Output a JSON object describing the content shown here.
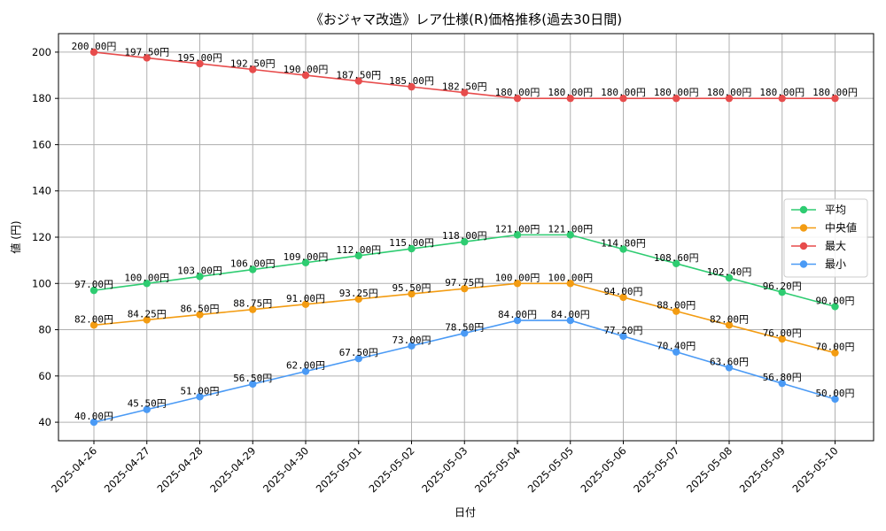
{
  "chart_data": {
    "type": "line",
    "title": "《おジャマ改造》レア仕様(R)価格推移(過去30日間)",
    "xlabel": "日付",
    "ylabel": "値 (円)",
    "ylim": [
      32,
      208
    ],
    "yticks": [
      40,
      60,
      80,
      100,
      120,
      140,
      160,
      180,
      200
    ],
    "grid": true,
    "legend_position": "center-right",
    "label_suffix": "円",
    "categories": [
      "2025-04-26",
      "2025-04-27",
      "2025-04-28",
      "2025-04-29",
      "2025-04-30",
      "2025-05-01",
      "2025-05-02",
      "2025-05-03",
      "2025-05-04",
      "2025-05-05",
      "2025-05-06",
      "2025-05-07",
      "2025-05-08",
      "2025-05-09",
      "2025-05-10"
    ],
    "series": [
      {
        "name": "平均",
        "color": "#2ecc71",
        "values": [
          97.0,
          100.0,
          103.0,
          106.0,
          109.0,
          112.0,
          115.0,
          118.0,
          121.0,
          121.0,
          114.8,
          108.6,
          102.4,
          96.2,
          90.0
        ]
      },
      {
        "name": "中央値",
        "color": "#f39c12",
        "values": [
          82.0,
          84.25,
          86.5,
          88.75,
          91.0,
          93.25,
          95.5,
          97.75,
          100.0,
          100.0,
          94.0,
          88.0,
          82.0,
          76.0,
          70.0
        ]
      },
      {
        "name": "最大",
        "color": "#e74c4c",
        "values": [
          200.0,
          197.5,
          195.0,
          192.5,
          190.0,
          187.5,
          185.0,
          182.5,
          180.0,
          180.0,
          180.0,
          180.0,
          180.0,
          180.0,
          180.0
        ]
      },
      {
        "name": "最小",
        "color": "#4a9af5",
        "values": [
          40.0,
          45.5,
          51.0,
          56.5,
          62.0,
          67.5,
          73.0,
          78.5,
          84.0,
          84.0,
          77.2,
          70.4,
          63.6,
          56.8,
          50.0
        ]
      }
    ]
  }
}
